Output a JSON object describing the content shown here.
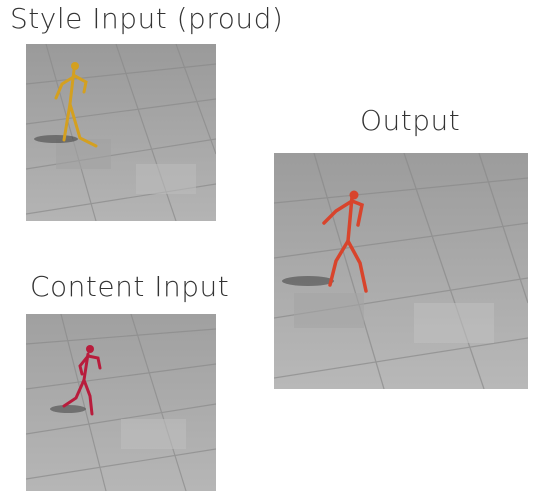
{
  "labels": {
    "style_input": "Style Input  (proud)",
    "content_input": "Content Input",
    "output": "Output"
  },
  "colors": {
    "style_figure": "#d4a020",
    "content_figure": "#b81c3c",
    "output_figure": "#d8442c",
    "floor_light": "#b8b8b8",
    "floor_dark": "#8e8e8e"
  }
}
